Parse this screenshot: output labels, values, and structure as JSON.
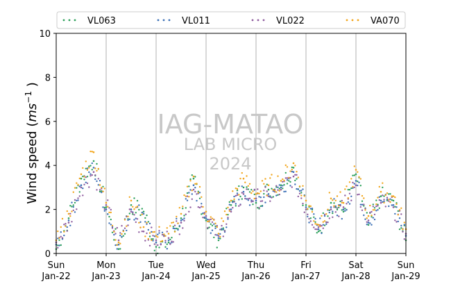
{
  "chart_data": {
    "type": "scatter",
    "ylabel": "Wind speed (ms⁻¹ )",
    "ylabel_parts": {
      "prefix": "Wind speed (",
      "unit": "ms",
      "exponent": "−1",
      "suffix": " )"
    },
    "ylim": [
      0,
      10
    ],
    "yticks": [
      0,
      2,
      4,
      6,
      8,
      10
    ],
    "xlim": [
      "2023-01-22",
      "2023-01-29"
    ],
    "xtick_labels": [
      {
        "day": "Sun",
        "date": "Jan-22"
      },
      {
        "day": "Mon",
        "date": "Jan-23"
      },
      {
        "day": "Tue",
        "date": "Jan-24"
      },
      {
        "day": "Wed",
        "date": "Jan-25"
      },
      {
        "day": "Thu",
        "date": "Jan-26"
      },
      {
        "day": "Fri",
        "date": "Jan-27"
      },
      {
        "day": "Sat",
        "date": "Jan-28"
      },
      {
        "day": "Sun",
        "date": "Jan-29"
      }
    ],
    "grid": "vertical",
    "legend_position": "top",
    "watermark": [
      "IAG-MATAO",
      "LAB MICRO",
      "2024"
    ],
    "series": [
      {
        "name": "VL063",
        "color": "#2ca05a",
        "x": [
          "01-22 00:00",
          "01-22 06:00",
          "01-22 12:00",
          "01-22 18:00",
          "01-23 00:00",
          "01-23 06:00",
          "01-23 12:00",
          "01-23 18:00",
          "01-24 00:00",
          "01-24 06:00",
          "01-24 12:00",
          "01-24 18:00",
          "01-25 00:00",
          "01-25 06:00",
          "01-25 12:00",
          "01-25 18:00",
          "01-26 00:00",
          "01-26 06:00",
          "01-26 12:00",
          "01-26 18:00",
          "01-27 00:00",
          "01-27 06:00",
          "01-27 12:00",
          "01-27 18:00",
          "01-28 00:00",
          "01-28 06:00",
          "01-28 12:00",
          "01-28 18:00",
          "01-29 00:00"
        ],
        "y": [
          0.2,
          1.6,
          3.4,
          4.2,
          2.1,
          0.2,
          2.2,
          1.9,
          0.3,
          0.5,
          1.6,
          3.4,
          1.5,
          0.6,
          2.2,
          3.0,
          2.3,
          2.9,
          3.1,
          3.9,
          2.2,
          1.0,
          2.3,
          1.9,
          3.6,
          1.3,
          2.6,
          2.4,
          0.6
        ]
      },
      {
        "name": "VL011",
        "color": "#3b6fb6",
        "x": [
          "01-22 00:00",
          "01-22 06:00",
          "01-22 12:00",
          "01-22 18:00",
          "01-23 00:00",
          "01-23 06:00",
          "01-23 12:00",
          "01-23 18:00",
          "01-24 00:00",
          "01-24 06:00",
          "01-24 12:00",
          "01-24 18:00",
          "01-25 00:00",
          "01-25 06:00",
          "01-25 12:00",
          "01-25 18:00",
          "01-26 00:00",
          "01-26 06:00",
          "01-26 12:00",
          "01-26 18:00",
          "01-27 00:00",
          "01-27 06:00",
          "01-27 12:00",
          "01-27 18:00",
          "01-28 00:00",
          "01-28 06:00",
          "01-28 12:00",
          "01-28 18:00",
          "01-29 00:00"
        ],
        "y": [
          0.4,
          1.5,
          3.1,
          3.9,
          2.0,
          0.4,
          2.0,
          1.8,
          0.5,
          0.6,
          1.5,
          3.1,
          1.6,
          0.7,
          2.0,
          2.8,
          2.4,
          2.7,
          3.0,
          3.7,
          2.1,
          1.1,
          2.1,
          2.0,
          3.3,
          1.4,
          2.4,
          2.2,
          0.8
        ]
      },
      {
        "name": "VL022",
        "color": "#8e5b9e",
        "x": [
          "01-22 00:00",
          "01-22 06:00",
          "01-22 12:00",
          "01-22 18:00",
          "01-23 00:00",
          "01-23 06:00",
          "01-23 12:00",
          "01-23 18:00",
          "01-24 00:00",
          "01-24 06:00",
          "01-24 12:00",
          "01-24 18:00",
          "01-25 00:00",
          "01-25 06:00",
          "01-25 12:00",
          "01-25 18:00",
          "01-26 00:00",
          "01-26 06:00",
          "01-26 12:00",
          "01-26 18:00",
          "01-27 00:00",
          "01-27 06:00",
          "01-27 12:00",
          "01-27 18:00",
          "01-28 00:00",
          "01-28 06:00",
          "01-28 12:00",
          "01-28 18:00",
          "01-29 00:00"
        ],
        "y": [
          0.5,
          1.4,
          3.0,
          3.7,
          2.2,
          0.6,
          1.9,
          1.0,
          0.6,
          0.7,
          1.4,
          2.9,
          1.7,
          0.8,
          1.9,
          2.7,
          2.5,
          2.6,
          2.9,
          3.5,
          2.0,
          1.2,
          2.0,
          2.1,
          3.1,
          1.5,
          2.3,
          2.1,
          0.9
        ]
      },
      {
        "name": "VA070",
        "color": "#f2a51a",
        "x": [
          "01-22 00:00",
          "01-22 06:00",
          "01-22 12:00",
          "01-22 18:00",
          "01-23 00:00",
          "01-23 06:00",
          "01-23 12:00",
          "01-23 18:00",
          "01-24 00:00",
          "01-24 06:00",
          "01-24 12:00",
          "01-24 18:00",
          "01-25 00:00",
          "01-25 06:00",
          "01-25 12:00",
          "01-25 18:00",
          "01-26 00:00",
          "01-26 06:00",
          "01-26 12:00",
          "01-26 18:00",
          "01-27 00:00",
          "01-27 06:00",
          "01-27 12:00",
          "01-27 18:00",
          "01-28 00:00",
          "01-28 06:00",
          "01-28 12:00",
          "01-28 18:00",
          "01-29 00:00"
        ],
        "y": [
          0.6,
          1.8,
          3.6,
          4.6,
          2.3,
          0.5,
          2.4,
          1.2,
          0.8,
          0.9,
          1.8,
          3.5,
          1.9,
          0.9,
          2.4,
          3.4,
          2.7,
          3.1,
          3.3,
          4.1,
          2.4,
          1.3,
          2.5,
          2.3,
          3.8,
          1.7,
          2.8,
          2.6,
          1.1
        ]
      }
    ]
  }
}
